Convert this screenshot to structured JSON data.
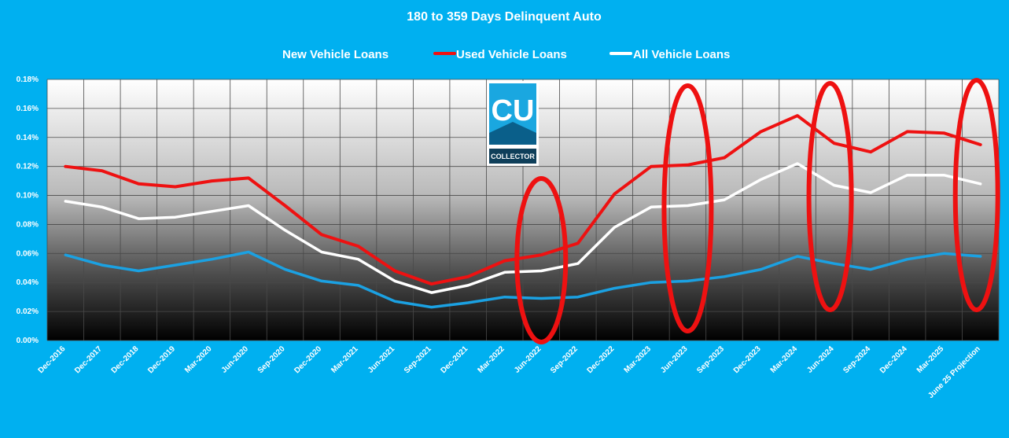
{
  "chart_data": {
    "type": "line",
    "title": "180 to 359 Days Delinquent Auto",
    "categories": [
      "Dec-2016",
      "Dec-2017",
      "Dec-2018",
      "Dec-2019",
      "Mar-2020",
      "Jun-2020",
      "Sep-2020",
      "Dec-2020",
      "Mar-2021",
      "Jun-2021",
      "Sep-2021",
      "Dec-2021",
      "Mar-2022",
      "Jun-2022",
      "Sep-2022",
      "Dec-2022",
      "Mar-2023",
      "Jun-2023",
      "Sep-2023",
      "Dec-2023",
      "Mar-2024",
      "Jun-2024",
      "Sep-2024",
      "Dec-2024",
      "Mar-2025",
      "June 25 Projection"
    ],
    "series": [
      {
        "name": "New Vehicle Loans",
        "color": "#1ba1e2",
        "values": [
          0.059,
          0.052,
          0.048,
          0.052,
          0.056,
          0.061,
          0.049,
          0.041,
          0.038,
          0.027,
          0.023,
          0.026,
          0.03,
          0.029,
          0.03,
          0.036,
          0.04,
          0.041,
          0.044,
          0.049,
          0.058,
          0.053,
          0.049,
          0.056,
          0.06,
          0.058
        ]
      },
      {
        "name": "Used Vehicle Loans",
        "color": "#ee1111",
        "values": [
          0.12,
          0.117,
          0.108,
          0.106,
          0.11,
          0.112,
          0.093,
          0.073,
          0.065,
          0.048,
          0.039,
          0.044,
          0.055,
          0.059,
          0.067,
          0.101,
          0.12,
          0.121,
          0.126,
          0.144,
          0.155,
          0.136,
          0.13,
          0.144,
          0.143,
          0.135
        ]
      },
      {
        "name": "All Vehicle Loans",
        "color": "#ffffff",
        "values": [
          0.096,
          0.092,
          0.084,
          0.085,
          0.089,
          0.093,
          0.076,
          0.061,
          0.056,
          0.041,
          0.033,
          0.038,
          0.047,
          0.048,
          0.053,
          0.078,
          0.092,
          0.093,
          0.097,
          0.111,
          0.122,
          0.107,
          0.102,
          0.114,
          0.114,
          0.108
        ]
      }
    ],
    "y_ticks": [
      "0.00%",
      "0.02%",
      "0.04%",
      "0.06%",
      "0.08%",
      "0.10%",
      "0.12%",
      "0.14%",
      "0.16%",
      "0.18%"
    ],
    "ylim": [
      0,
      0.18
    ],
    "y_unit": "percent",
    "grid": true,
    "legend_position": "top-center",
    "highlight_ellipses_at": [
      "Jun-2022",
      "Jun-2023",
      "Jun-2024",
      "June 25 Projection"
    ],
    "highlight_color": "#ee1111"
  },
  "logo": {
    "monogram": "CU",
    "text": "COLLECTOR"
  }
}
